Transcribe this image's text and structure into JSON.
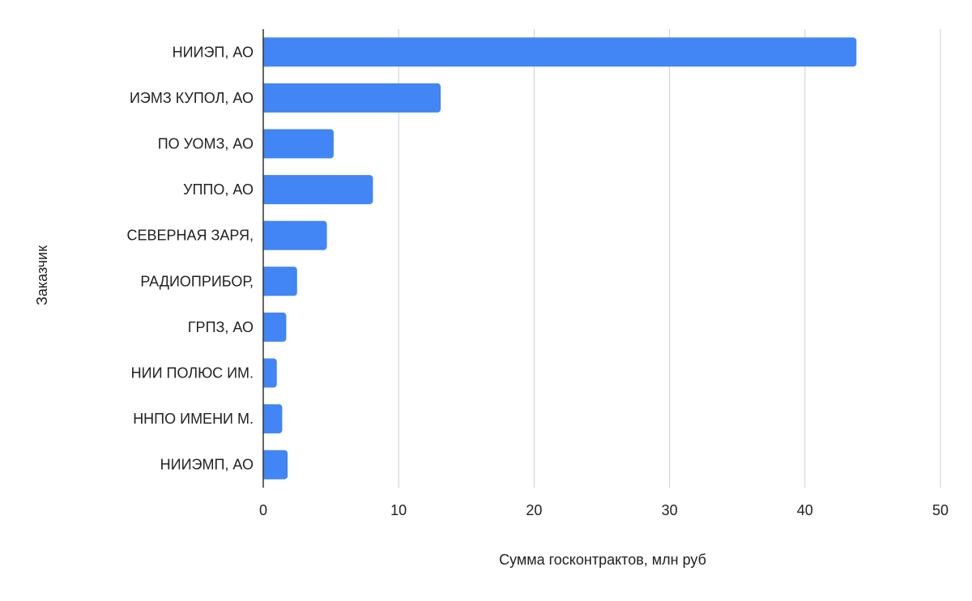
{
  "chart_data": {
    "type": "bar",
    "orientation": "horizontal",
    "categories": [
      "НИИЭП, АО",
      "ИЭМЗ КУПОЛ, АО",
      "ПО УОМЗ, АО",
      "УППО, АО",
      "СЕВЕРНАЯ ЗАРЯ,",
      "РАДИОПРИБОР,",
      "ГРПЗ, АО",
      "НИИ ПОЛЮС ИМ.",
      "ННПО ИМЕНИ М.",
      "НИИЭМП, АО"
    ],
    "values": [
      43.8,
      13.1,
      5.2,
      8.1,
      4.7,
      2.5,
      1.7,
      1.0,
      1.4,
      1.8
    ],
    "title": "",
    "xlabel": "Сумма госконтрактов, млн руб",
    "ylabel": "Заказчик",
    "xlim": [
      0,
      50
    ],
    "xticks": [
      "0",
      "10",
      "20",
      "30",
      "40",
      "50"
    ],
    "grid": "vertical",
    "legend": "none",
    "bar_color": "#4285F4",
    "grid_color": "#cccccc",
    "axis_color": "#333333"
  }
}
